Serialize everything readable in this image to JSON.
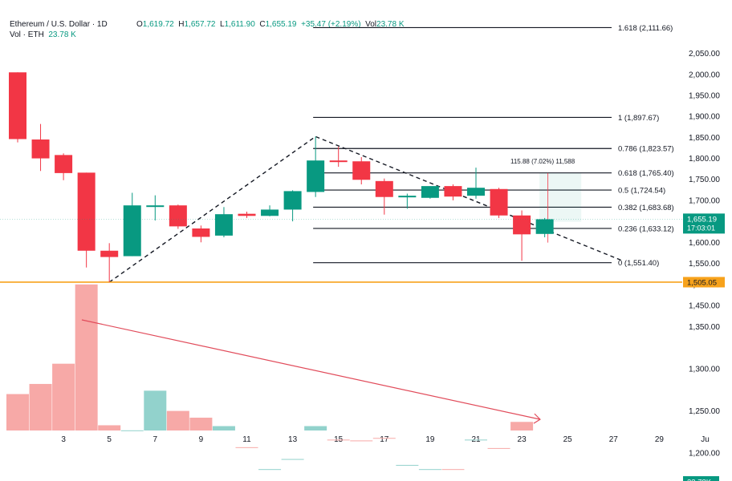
{
  "header": {
    "symbol": "Ethereum / U.S. Dollar · 1D",
    "ohlc": {
      "o_label": "O",
      "o": "1,619.72",
      "h_label": "H",
      "h": "1,657.72",
      "l_label": "L",
      "l": "1,611.90",
      "c_label": "C",
      "c": "1,655.19",
      "change": "+35.47 (+2.19%)"
    },
    "vol_label": "Vol",
    "vol": "23.78 K",
    "vol_eth_label": "Vol · ETH",
    "vol_eth": "23.78 K"
  },
  "colors": {
    "up": "#089981",
    "down": "#f23645",
    "vol_up": "#92d2cc",
    "vol_down": "#f7a9a7",
    "support": "#f7a21b",
    "trend": "#e14b5a"
  },
  "chart_data": {
    "type": "candlestick",
    "y_ticks": [
      "1,200.00",
      "1,250.00",
      "1,300.00",
      "1,350.00",
      "1,400.00",
      "1,450.00",
      "1,500.00",
      "1,550.00",
      "1,600.00",
      "1,650.00",
      "1,700.00",
      "1,750.00",
      "1,800.00",
      "1,850.00",
      "1,900.00",
      "1,950.00",
      "2,000.00",
      "2,050.00"
    ],
    "y_tick_values": [
      1200,
      1250,
      1300,
      1350,
      1400,
      1450,
      1500,
      1550,
      1600,
      1650,
      1700,
      1750,
      1800,
      1850,
      1900,
      1950,
      2000,
      2050
    ],
    "x_ticks": [
      "3",
      "5",
      "7",
      "9",
      "11",
      "13",
      "15",
      "17",
      "19",
      "21",
      "23",
      "25",
      "27",
      "29",
      "Ju"
    ],
    "x_tick_days": [
      3,
      5,
      7,
      9,
      11,
      13,
      15,
      17,
      19,
      21,
      23,
      25,
      27,
      29,
      31
    ],
    "candles": [
      {
        "d": 1,
        "o": 2005,
        "h": 2005,
        "l": 1838,
        "c": 1846
      },
      {
        "d": 2,
        "o": 1845,
        "h": 1882,
        "l": 1770,
        "c": 1800
      },
      {
        "d": 3,
        "o": 1808,
        "h": 1812,
        "l": 1748,
        "c": 1765
      },
      {
        "d": 4,
        "o": 1766,
        "h": 1766,
        "l": 1540,
        "c": 1580
      },
      {
        "d": 5,
        "o": 1580,
        "h": 1598,
        "l": 1505,
        "c": 1565
      },
      {
        "d": 6,
        "o": 1567,
        "h": 1718,
        "l": 1567,
        "c": 1688
      },
      {
        "d": 7,
        "o": 1688,
        "h": 1712,
        "l": 1652,
        "c": 1688
      },
      {
        "d": 8,
        "o": 1688,
        "h": 1690,
        "l": 1632,
        "c": 1638
      },
      {
        "d": 9,
        "o": 1633,
        "h": 1640,
        "l": 1600,
        "c": 1613
      },
      {
        "d": 10,
        "o": 1616,
        "h": 1684,
        "l": 1612,
        "c": 1667
      },
      {
        "d": 11,
        "o": 1668,
        "h": 1673,
        "l": 1658,
        "c": 1663
      },
      {
        "d": 12,
        "o": 1663,
        "h": 1688,
        "l": 1662,
        "c": 1678
      },
      {
        "d": 13,
        "o": 1678,
        "h": 1724,
        "l": 1650,
        "c": 1722
      },
      {
        "d": 14,
        "o": 1720,
        "h": 1852,
        "l": 1708,
        "c": 1795
      },
      {
        "d": 15,
        "o": 1795,
        "h": 1828,
        "l": 1780,
        "c": 1792
      },
      {
        "d": 16,
        "o": 1793,
        "h": 1803,
        "l": 1738,
        "c": 1749
      },
      {
        "d": 17,
        "o": 1746,
        "h": 1752,
        "l": 1666,
        "c": 1708
      },
      {
        "d": 18,
        "o": 1710,
        "h": 1716,
        "l": 1680,
        "c": 1711
      },
      {
        "d": 19,
        "o": 1706,
        "h": 1730,
        "l": 1704,
        "c": 1734
      },
      {
        "d": 20,
        "o": 1734,
        "h": 1738,
        "l": 1700,
        "c": 1709
      },
      {
        "d": 21,
        "o": 1711,
        "h": 1778,
        "l": 1704,
        "c": 1730
      },
      {
        "d": 22,
        "o": 1727,
        "h": 1730,
        "l": 1658,
        "c": 1664
      },
      {
        "d": 23,
        "o": 1664,
        "h": 1676,
        "l": 1556,
        "c": 1619
      },
      {
        "d": 24,
        "o": 1620,
        "h": 1658,
        "l": 1612,
        "c": 1655
      }
    ],
    "volume": [
      {
        "d": 1,
        "v": 1270,
        "up": false
      },
      {
        "d": 2,
        "v": 1282,
        "up": false
      },
      {
        "d": 3,
        "v": 1306,
        "up": false
      },
      {
        "d": 4,
        "v": 1400,
        "up": false
      },
      {
        "d": 5,
        "v": 1233,
        "up": false
      },
      {
        "d": 6,
        "v": 1227,
        "up": true
      },
      {
        "d": 7,
        "v": 1274,
        "up": true
      },
      {
        "d": 8,
        "v": 1250,
        "up": false
      },
      {
        "d": 9,
        "v": 1242,
        "up": false
      },
      {
        "d": 10,
        "v": 1232,
        "up": true
      },
      {
        "d": 11,
        "v": 1207,
        "up": false
      },
      {
        "d": 12,
        "v": 1181,
        "up": true
      },
      {
        "d": 13,
        "v": 1193,
        "up": true
      },
      {
        "d": 14,
        "v": 1232,
        "up": true
      },
      {
        "d": 15,
        "v": 1216,
        "up": false
      },
      {
        "d": 16,
        "v": 1215,
        "up": false
      },
      {
        "d": 17,
        "v": 1218,
        "up": false
      },
      {
        "d": 18,
        "v": 1186,
        "up": true
      },
      {
        "d": 19,
        "v": 1181,
        "up": true
      },
      {
        "d": 20,
        "v": 1181,
        "up": false
      },
      {
        "d": 21,
        "v": 1216,
        "up": true
      },
      {
        "d": 22,
        "v": 1206,
        "up": false
      },
      {
        "d": 23,
        "v": 1237,
        "up": false
      },
      {
        "d": 24,
        "v": 1166,
        "up": true
      }
    ],
    "fib_levels": [
      {
        "label": "1.618 (2,111.66)",
        "value": 2111.66
      },
      {
        "label": "1 (1,897.67)",
        "value": 1897.67
      },
      {
        "label": "0.786 (1,823.57)",
        "value": 1823.57
      },
      {
        "label": "0.618 (1,765.40)",
        "value": 1765.4
      },
      {
        "label": "0.5 (1,724.54)",
        "value": 1724.54
      },
      {
        "label": "0.382 (1,683.68)",
        "value": 1683.68
      },
      {
        "label": "0.236 (1,633.12)",
        "value": 1633.12
      },
      {
        "label": "0 (1,551.40)",
        "value": 1551.4
      }
    ],
    "fib_start_day": 14,
    "support": {
      "value": 1505.05,
      "label": "1,505.05"
    },
    "price_tag": {
      "value": 1655.19,
      "label": "1,655.19",
      "countdown": "17:03:01"
    },
    "volume_tag": {
      "value": 1166,
      "label": "23.78K"
    },
    "measure": {
      "label": "115.88 (7.02%) 11,588",
      "from_day": 23.7,
      "to_day": 25,
      "low": 1649,
      "high": 1765
    },
    "triangle": [
      {
        "d": 5,
        "p": 1505
      },
      {
        "d": 14,
        "p": 1852
      },
      {
        "d": 27.4,
        "p": 1556
      }
    ],
    "trendline": {
      "d1": 3.8,
      "p1": 1358,
      "d2": 23.8,
      "p2": 1240
    }
  }
}
